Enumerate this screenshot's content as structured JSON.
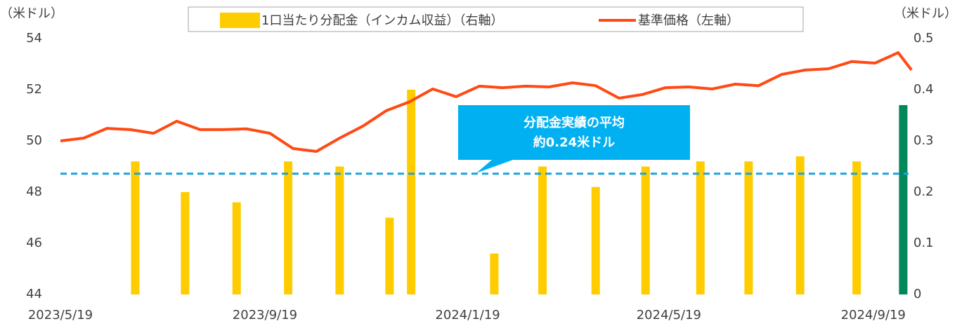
{
  "chart_data": {
    "type": "combo",
    "y_unit_label": "（米ドル）",
    "y2_unit_label": "（米ドル）",
    "xlim": [
      "2023/5/19",
      "2024/10/14"
    ],
    "xticks": [
      "2023/5/19",
      "2023/9/19",
      "2024/1/19",
      "2024/5/19",
      "2024/9/19"
    ],
    "ylim": [
      44,
      54
    ],
    "yticks": [
      44,
      46,
      48,
      50,
      52,
      54
    ],
    "y2lim": [
      0,
      0.5
    ],
    "y2ticks": [
      0,
      0.1,
      0.2,
      0.3,
      0.4,
      0.5
    ],
    "grid": false,
    "legend": "top",
    "series": [
      {
        "name": "1口当たり分配金（インカム収益）（右軸）",
        "type": "bar",
        "axis": "y2",
        "color": "#ffcc00",
        "x": [
          "2023/7/3",
          "2023/8/2",
          "2023/9/2",
          "2023/10/3",
          "2023/11/3",
          "2023/12/3",
          "2023/12/16",
          "2024/2/4",
          "2024/3/4",
          "2024/4/5",
          "2024/5/5",
          "2024/6/7",
          "2024/7/6",
          "2024/8/6",
          "2024/9/9",
          "2024/10/7"
        ],
        "values": [
          0.26,
          0.2,
          0.18,
          0.26,
          0.25,
          0.15,
          0.4,
          0.08,
          0.25,
          0.21,
          0.25,
          0.26,
          0.26,
          0.27,
          0.26,
          0.37
        ],
        "colors": [
          "#ffcc00",
          "#ffcc00",
          "#ffcc00",
          "#ffcc00",
          "#ffcc00",
          "#ffcc00",
          "#ffcc00",
          "#ffcc00",
          "#ffcc00",
          "#ffcc00",
          "#ffcc00",
          "#ffcc00",
          "#ffcc00",
          "#ffcc00",
          "#ffcc00",
          "#00875a"
        ]
      },
      {
        "name": "基準価格（左軸）",
        "type": "line",
        "axis": "y",
        "color": "#ff4a14",
        "x": [
          "2023/5/19",
          "2023/6/2",
          "2023/6/16",
          "2023/6/30",
          "2023/7/14",
          "2023/7/28",
          "2023/8/11",
          "2023/8/25",
          "2023/9/8",
          "2023/9/22",
          "2023/10/6",
          "2023/10/20",
          "2023/11/3",
          "2023/11/17",
          "2023/12/1",
          "2023/12/15",
          "2023/12/29",
          "2024/1/12",
          "2024/1/26",
          "2024/2/9",
          "2024/2/23",
          "2024/3/8",
          "2024/3/22",
          "2024/4/5",
          "2024/4/19",
          "2024/5/3",
          "2024/5/17",
          "2024/5/31",
          "2024/6/14",
          "2024/6/28",
          "2024/7/12",
          "2024/7/26",
          "2024/8/9",
          "2024/8/23",
          "2024/9/6",
          "2024/9/20",
          "2024/10/4",
          "2024/10/12"
        ],
        "values": [
          50.0,
          50.11,
          50.49,
          50.44,
          50.3,
          50.77,
          50.44,
          50.44,
          50.47,
          50.3,
          49.7,
          49.59,
          50.11,
          50.58,
          51.18,
          51.53,
          52.03,
          51.73,
          52.14,
          52.08,
          52.14,
          52.11,
          52.27,
          52.16,
          51.67,
          51.81,
          52.08,
          52.11,
          52.03,
          52.22,
          52.16,
          52.6,
          52.77,
          52.82,
          53.1,
          53.04,
          53.45,
          52.77
        ]
      }
    ],
    "average_line": {
      "value": 0.236,
      "axis": "y2",
      "color": "#1aa3e0",
      "label_lines": [
        "分配金実績の平均",
        "約0.24米ドル"
      ]
    }
  }
}
